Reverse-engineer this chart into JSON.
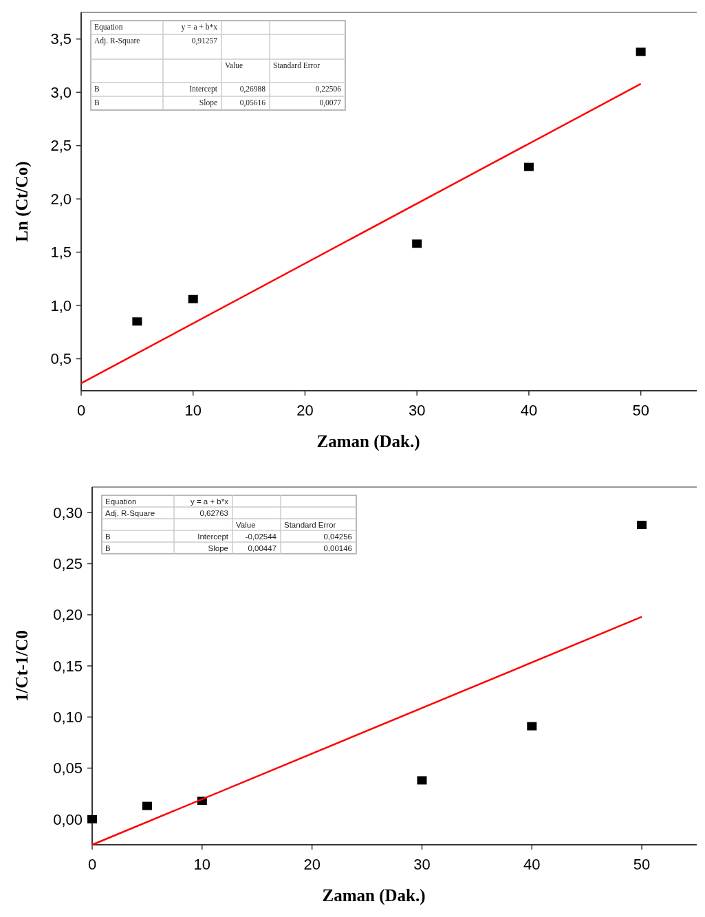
{
  "chart_data": [
    {
      "type": "scatter",
      "xlabel": "Zaman (Dak.)",
      "ylabel": "Ln (Ct/Co)",
      "xlim": [
        0,
        55
      ],
      "xticks": [
        0,
        10,
        20,
        30,
        40,
        50
      ],
      "ylim": [
        0.2,
        3.75
      ],
      "yticks": [
        {
          "value": 0.5,
          "label": "0,5"
        },
        {
          "value": 1.0,
          "label": "1,0"
        },
        {
          "value": 1.5,
          "label": "1,5"
        },
        {
          "value": 2.0,
          "label": "2,0"
        },
        {
          "value": 2.5,
          "label": "2,5"
        },
        {
          "value": 3.0,
          "label": "3,0"
        },
        {
          "value": 3.5,
          "label": "3,5"
        }
      ],
      "grid": false,
      "series": [
        {
          "type": "scatter",
          "color": "#000000",
          "marker": "square",
          "x": [
            5,
            10,
            30,
            40,
            50
          ],
          "values": [
            0.85,
            1.06,
            1.58,
            2.3,
            3.38
          ]
        },
        {
          "type": "line",
          "color": "#ff0000",
          "line_style": "solid",
          "x": [
            0,
            50
          ],
          "values": [
            0.27,
            3.08
          ]
        }
      ],
      "annotations": [
        "Equation",
        "y = a + b*x",
        "Adj. R-Square",
        "0,91257",
        "Value",
        "Standard Error",
        "B",
        "Intercept",
        "0,26988",
        "0,22506",
        "B",
        "Slope",
        "0,05616",
        "0,0077"
      ]
    },
    {
      "type": "scatter",
      "xlabel": "Zaman (Dak.)",
      "ylabel": "1/Ct-1/C0",
      "xlim": [
        0,
        55
      ],
      "xticks": [
        0,
        10,
        20,
        30,
        40,
        50
      ],
      "ylim": [
        -0.025,
        0.325
      ],
      "yticks": [
        {
          "value": 0,
          "label": "0,00"
        },
        {
          "value": 0.05,
          "label": "0,05"
        },
        {
          "value": 0.1,
          "label": "0,10"
        },
        {
          "value": 0.15,
          "label": "0,15"
        },
        {
          "value": 0.2,
          "label": "0,20"
        },
        {
          "value": 0.25,
          "label": "0,25"
        },
        {
          "value": 0.3,
          "label": "0,30"
        }
      ],
      "grid": false,
      "series": [
        {
          "type": "scatter",
          "color": "#000000",
          "marker": "square",
          "x": [
            0,
            5,
            10,
            30,
            40,
            50
          ],
          "values": [
            0,
            0.013,
            0.018,
            0.038,
            0.091,
            0.288
          ]
        },
        {
          "type": "line",
          "color": "#ff0000",
          "line_style": "solid",
          "x": [
            0,
            50
          ],
          "values": [
            -0.025,
            0.198
          ]
        }
      ],
      "annotations": [
        "Equation",
        "y = a + b*x",
        "Adj. R-Square",
        "0,62763",
        "Value",
        "Standard Error",
        "B",
        "Intercept",
        "-0,02544",
        "0,04256",
        "B",
        "Slope",
        "0,00447",
        "0,00146"
      ]
    }
  ]
}
